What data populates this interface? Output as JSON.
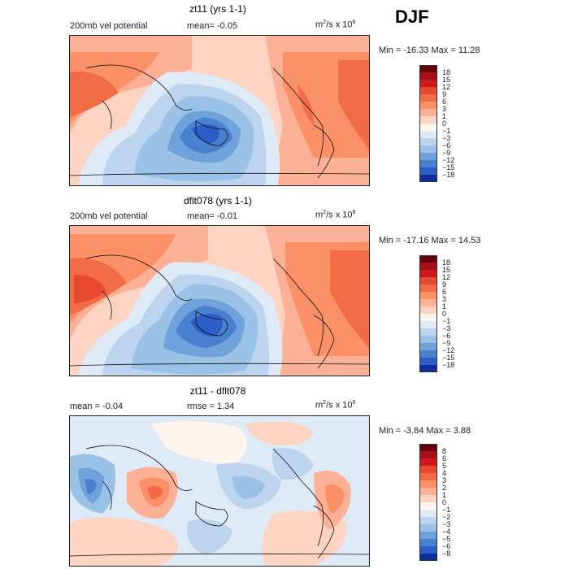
{
  "season": "DJF",
  "panels": [
    {
      "id": "p1",
      "title": "zt11 (yrs 1-1)",
      "left_label": "200mb vel potential",
      "center_label": "mean=  -0.05",
      "units": "m",
      "units_tail": "/s x 10",
      "units_exp1": "2",
      "units_exp2": "6",
      "stats": "Min = -16.33 Max =  11.28",
      "colorbar": {
        "ticks": [
          "18",
          "15",
          "12",
          "9",
          "6",
          "3",
          "1",
          "0",
          "−1",
          "−3",
          "−6",
          "−9",
          "−12",
          "−15",
          "−18"
        ],
        "colors": [
          "#67000d",
          "#a50f15",
          "#cb181d",
          "#e6492d",
          "#f16b45",
          "#fb8f66",
          "#fcb196",
          "#fdd4c2",
          "#fff5ee",
          "#deebf7",
          "#bcd4ee",
          "#9ac1e6",
          "#6fa2da",
          "#4a80d0",
          "#2c5ec8",
          "#0b2f9f"
        ]
      }
    },
    {
      "id": "p2",
      "title": "dflt078 (yrs 1-1)",
      "left_label": "200mb vel potential",
      "center_label": "mean=  -0.01",
      "units": "m",
      "units_tail": "/s x 10",
      "units_exp1": "2",
      "units_exp2": "6",
      "stats": "Min = -17.16 Max =  14.53",
      "colorbar": {
        "ticks": [
          "18",
          "15",
          "12",
          "9",
          "6",
          "3",
          "1",
          "0",
          "−1",
          "−3",
          "−6",
          "−9",
          "−12",
          "−15",
          "−18"
        ],
        "colors": [
          "#67000d",
          "#a50f15",
          "#cb181d",
          "#e6492d",
          "#f16b45",
          "#fb8f66",
          "#fcb196",
          "#fdd4c2",
          "#fff5ee",
          "#deebf7",
          "#bcd4ee",
          "#9ac1e6",
          "#6fa2da",
          "#4a80d0",
          "#2c5ec8",
          "#0b2f9f"
        ]
      }
    },
    {
      "id": "p3",
      "title": "zt11 - dflt078",
      "left_label": "mean =  -0.04",
      "center_label": "rmse =   1.34",
      "units": "m",
      "units_tail": "/s x 10",
      "units_exp1": "2",
      "units_exp2": "6",
      "stats": "Min =  -3.84 Max =   3.88",
      "colorbar": {
        "ticks": [
          "8",
          "6",
          "5",
          "4",
          "3",
          "2",
          "1",
          "0",
          "−1",
          "−2",
          "−3",
          "−4",
          "−5",
          "−6",
          "−8"
        ],
        "colors": [
          "#67000d",
          "#a50f15",
          "#cb181d",
          "#e6492d",
          "#f16b45",
          "#fb8f66",
          "#fcb196",
          "#fdd4c2",
          "#fff5ee",
          "#deebf7",
          "#bcd4ee",
          "#9ac1e6",
          "#6fa2da",
          "#4a80d0",
          "#2c5ec8",
          "#0b2f9f"
        ]
      }
    }
  ],
  "chart_data": {
    "type": "heatmap",
    "title": "DJF",
    "variable": "200mb vel potential",
    "units": "m^2/s x 10^6",
    "maps": [
      {
        "name": "zt11 (yrs 1-1)",
        "mean": -0.05,
        "min": -16.33,
        "max": 11.28,
        "levels": [
          -18,
          -15,
          -12,
          -9,
          -6,
          -3,
          -1,
          0,
          1,
          3,
          6,
          9,
          12,
          15,
          18
        ]
      },
      {
        "name": "dflt078 (yrs 1-1)",
        "mean": -0.01,
        "min": -17.16,
        "max": 14.53,
        "levels": [
          -18,
          -15,
          -12,
          -9,
          -6,
          -3,
          -1,
          0,
          1,
          3,
          6,
          9,
          12,
          15,
          18
        ]
      },
      {
        "name": "zt11 - dflt078",
        "mean": -0.04,
        "rmse": 1.34,
        "min": -3.84,
        "max": 3.88,
        "levels": [
          -8,
          -6,
          -5,
          -4,
          -3,
          -2,
          -1,
          0,
          1,
          2,
          3,
          4,
          5,
          6,
          8
        ]
      }
    ]
  }
}
